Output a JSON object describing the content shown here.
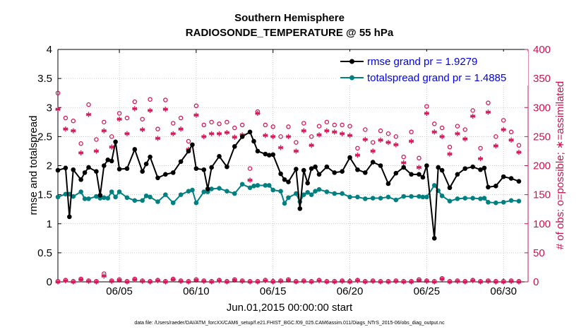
{
  "chart_data": {
    "type": "line",
    "title": "Southern Hemisphere",
    "subtitle": "RADIOSONDE_TEMPERATURE @ 55 hPa",
    "xlabel": "Jun.01,2015 00:00:00 start",
    "ylabel": "rmse and totalspread",
    "ylabel_right": "# of obs: o=possible; ∗=assimilated",
    "footnote": "data file: /Users/raeder/DAI/ATM_forcXX/CAM6_setup/f.e21.FHIST_BGC.f09_025.CAM6assim.011/Diags_NTrS_2015-06/obs_diag_output.nc",
    "xlim": [
      1.0,
      31.6
    ],
    "ylim": [
      0,
      4
    ],
    "ylim_right": [
      0,
      400
    ],
    "xticks": [
      5,
      10,
      15,
      20,
      25,
      30
    ],
    "xtick_labels": [
      "06/05",
      "06/10",
      "06/15",
      "06/20",
      "06/25",
      "06/30"
    ],
    "yticks": [
      0,
      0.5,
      1,
      1.5,
      2,
      2.5,
      3,
      3.5,
      4
    ],
    "ytick_labels": [
      "0",
      "0.5",
      "1",
      "1.5",
      "2",
      "2.5",
      "3",
      "3.5",
      "4"
    ],
    "yticks_right": [
      0,
      50,
      100,
      150,
      200,
      250,
      300,
      350,
      400
    ],
    "ytick_labels_right": [
      "0",
      "50",
      "100",
      "150",
      "200",
      "250",
      "300",
      "350",
      "400"
    ],
    "colors": {
      "rmse": "#000000",
      "spread": "#008080",
      "obs": "#d6185a",
      "legend_text": "#0000ee",
      "axis_right": "#c8144e"
    },
    "series": [
      {
        "name": "rmse grand pr = 1.9279",
        "key": "rmse",
        "x": [
          1.0,
          1.5,
          1.75,
          2.0,
          2.5,
          2.75,
          3.0,
          3.5,
          3.75,
          4.0,
          4.25,
          4.5,
          4.75,
          5.0,
          5.5,
          6.0,
          6.5,
          6.75,
          7.0,
          7.5,
          8.0,
          8.5,
          9.0,
          9.5,
          9.75,
          10.0,
          10.5,
          10.75,
          11.0,
          11.5,
          12.0,
          12.5,
          13.0,
          13.5,
          13.75,
          14.0,
          14.5,
          14.75,
          15.0,
          15.5,
          15.75,
          16.0,
          16.5,
          16.75,
          17.0,
          17.25,
          17.5,
          17.75,
          18.0,
          18.5,
          19.0,
          19.5,
          20.0,
          20.5,
          21.0,
          21.5,
          22.0,
          22.5,
          23.0,
          23.5,
          24.0,
          24.5,
          24.75,
          25.0,
          25.5,
          25.75,
          26.0,
          26.5,
          27.0,
          27.5,
          28.0,
          28.5,
          28.75,
          29.0,
          29.5,
          30.0,
          30.5,
          31.0
        ],
        "y": [
          1.92,
          1.96,
          1.12,
          1.93,
          1.76,
          1.88,
          1.97,
          1.9,
          1.49,
          2.0,
          2.1,
          2.08,
          2.41,
          1.94,
          1.95,
          2.28,
          1.9,
          2.03,
          2.15,
          1.79,
          1.85,
          1.88,
          2.07,
          2.25,
          2.36,
          1.95,
          1.93,
          1.6,
          1.97,
          2.16,
          1.98,
          2.33,
          2.5,
          2.58,
          2.42,
          2.25,
          2.2,
          2.18,
          2.19,
          1.86,
          1.76,
          1.72,
          1.94,
          1.26,
          1.92,
          1.7,
          1.95,
          1.98,
          1.85,
          1.98,
          1.88,
          1.9,
          2.14,
          1.93,
          1.88,
          2.06,
          2.0,
          1.69,
          1.87,
          1.97,
          1.85,
          1.85,
          1.8,
          2.0,
          0.75,
          1.97,
          1.92,
          1.62,
          1.85,
          1.95,
          1.98,
          1.93,
          1.96,
          1.63,
          1.65,
          1.81,
          1.78,
          1.73
        ]
      },
      {
        "name": "totalspread grand pr = 1.4885",
        "key": "spread",
        "x": [
          1.0,
          1.5,
          1.75,
          2.0,
          2.5,
          2.75,
          3.0,
          3.5,
          3.75,
          4.0,
          4.25,
          4.5,
          4.75,
          5.0,
          5.5,
          6.0,
          6.5,
          6.75,
          7.0,
          7.5,
          8.0,
          8.5,
          9.0,
          9.5,
          9.75,
          10.0,
          10.5,
          10.75,
          11.0,
          11.5,
          12.0,
          12.5,
          13.0,
          13.5,
          13.75,
          14.0,
          14.5,
          14.75,
          15.0,
          15.5,
          15.75,
          16.0,
          16.5,
          16.75,
          17.0,
          17.25,
          17.5,
          17.75,
          18.0,
          18.5,
          19.0,
          19.5,
          20.0,
          20.5,
          21.0,
          21.5,
          22.0,
          22.5,
          23.0,
          23.5,
          24.0,
          24.5,
          24.75,
          25.0,
          25.5,
          25.75,
          26.0,
          26.5,
          27.0,
          27.5,
          28.0,
          28.5,
          28.75,
          29.0,
          29.5,
          30.0,
          30.5,
          31.0
        ],
        "y": [
          1.46,
          1.51,
          1.51,
          1.47,
          1.55,
          1.43,
          1.43,
          1.47,
          1.44,
          1.45,
          1.44,
          1.55,
          1.46,
          1.55,
          1.45,
          1.4,
          1.4,
          1.48,
          1.46,
          1.38,
          1.5,
          1.36,
          1.5,
          1.56,
          1.58,
          1.36,
          1.55,
          1.55,
          1.6,
          1.61,
          1.56,
          1.52,
          1.68,
          1.62,
          1.65,
          1.66,
          1.66,
          1.66,
          1.58,
          1.56,
          1.35,
          1.45,
          1.52,
          1.38,
          1.5,
          1.54,
          1.5,
          1.56,
          1.59,
          1.55,
          1.52,
          1.52,
          1.46,
          1.46,
          1.43,
          1.44,
          1.44,
          1.46,
          1.41,
          1.47,
          1.47,
          1.47,
          1.46,
          1.46,
          1.66,
          1.57,
          1.48,
          1.39,
          1.43,
          1.44,
          1.44,
          1.43,
          1.44,
          1.37,
          1.36,
          1.37,
          1.4,
          1.39
        ]
      }
    ],
    "obs_possible": {
      "x": [
        1.0,
        1.5,
        2.0,
        2.5,
        3.0,
        3.5,
        4.0,
        4.5,
        5.0,
        5.5,
        6.0,
        6.5,
        7.0,
        7.5,
        8.0,
        8.5,
        9.0,
        9.5,
        10.0,
        10.5,
        11.0,
        11.5,
        12.0,
        12.5,
        13.0,
        13.5,
        14.0,
        14.5,
        15.0,
        15.5,
        16.0,
        16.5,
        17.0,
        17.5,
        18.0,
        18.5,
        19.0,
        19.5,
        20.0,
        20.5,
        21.0,
        21.5,
        22.0,
        22.5,
        23.0,
        23.5,
        24.0,
        24.5,
        25.0,
        25.5,
        26.0,
        26.5,
        27.0,
        27.5,
        28.0,
        28.5,
        29.0,
        29.5,
        30.0,
        30.5,
        31.0
      ],
      "y": [
        325,
        282,
        277,
        238,
        305,
        245,
        275,
        250,
        290,
        282,
        310,
        280,
        314,
        263,
        313,
        273,
        282,
        242,
        303,
        270,
        275,
        272,
        275,
        265,
        270,
        195,
        293,
        270,
        267,
        250,
        267,
        240,
        273,
        250,
        268,
        275,
        270,
        270,
        268,
        230,
        262,
        240,
        260,
        255,
        250,
        215,
        258,
        213,
        302,
        272,
        265,
        232,
        268,
        262,
        295,
        230,
        308,
        250,
        278,
        258,
        235
      ]
    },
    "obs_assimilated": {
      "x": [
        1.0,
        1.5,
        2.0,
        2.5,
        3.0,
        3.5,
        4.0,
        4.5,
        5.0,
        5.5,
        6.0,
        6.5,
        7.0,
        7.5,
        8.0,
        8.5,
        9.0,
        9.5,
        10.0,
        10.5,
        11.0,
        11.5,
        12.0,
        12.5,
        13.0,
        13.5,
        14.0,
        14.5,
        15.0,
        15.5,
        16.0,
        16.5,
        17.0,
        17.5,
        18.0,
        18.5,
        19.0,
        19.5,
        20.0,
        20.5,
        21.0,
        21.5,
        22.0,
        22.5,
        23.0,
        23.5,
        24.0,
        24.5,
        25.0,
        25.5,
        26.0,
        26.5,
        27.0,
        27.5,
        28.0,
        28.5,
        29.0,
        29.5,
        30.0,
        30.5,
        31.0
      ],
      "y": [
        297,
        263,
        260,
        222,
        288,
        225,
        260,
        232,
        280,
        255,
        298,
        262,
        295,
        247,
        297,
        255,
        263,
        228,
        287,
        250,
        255,
        255,
        257,
        249,
        253,
        175,
        290,
        252,
        250,
        231,
        250,
        225,
        260,
        235,
        253,
        260,
        258,
        255,
        252,
        218,
        245,
        225,
        244,
        240,
        236,
        205,
        242,
        197,
        290,
        258,
        250,
        220,
        255,
        246,
        285,
        212,
        292,
        234,
        262,
        244,
        223
      ]
    },
    "obs_bottom_possible": {
      "x": [
        1.0,
        1.5,
        2.0,
        2.5,
        3.0,
        3.5,
        4.0,
        4.5,
        5.0,
        5.5,
        6.0,
        6.5,
        7.0,
        7.5,
        8.0,
        8.5,
        9.0,
        9.5,
        10.0,
        10.5,
        11.0,
        11.5,
        12.0,
        12.5,
        13.0,
        13.5,
        14.0,
        14.5,
        15.0,
        15.5,
        16.0,
        16.5,
        17.0,
        17.5,
        18.0,
        18.5,
        19.0,
        19.5,
        20.0,
        20.5,
        21.0,
        21.5,
        22.0,
        22.5,
        23.0,
        23.5,
        24.0,
        24.5,
        25.0,
        25.5,
        26.0,
        26.5,
        27.0,
        27.5,
        28.0,
        28.5,
        29.0,
        29.5,
        30.0,
        30.5,
        31.0
      ],
      "y": [
        1,
        3,
        1,
        5,
        2,
        1,
        14,
        2,
        4,
        1,
        5,
        2,
        1,
        3,
        1,
        5,
        2,
        1,
        4,
        2,
        1,
        3,
        1,
        4,
        2,
        1,
        1,
        3,
        1,
        2,
        4,
        1,
        2,
        1,
        3,
        1,
        1,
        2,
        1,
        3,
        1,
        2,
        1,
        1,
        2,
        1,
        1,
        4,
        2,
        1,
        6,
        1,
        2,
        1,
        3,
        1,
        2,
        1,
        1,
        2,
        1
      ]
    },
    "obs_bottom_assimilated": {
      "x": [
        1.0,
        1.5,
        2.0,
        2.5,
        3.0,
        3.5,
        4.0,
        4.5,
        5.0,
        5.5,
        6.0,
        6.5,
        7.0,
        7.5,
        8.0,
        8.5,
        9.0,
        9.5,
        10.0,
        10.5,
        11.0,
        11.5,
        12.0,
        12.5,
        13.0,
        13.5,
        14.0,
        14.5,
        15.0,
        15.5,
        16.0,
        16.5,
        17.0,
        17.5,
        18.0,
        18.5,
        19.0,
        19.5,
        20.0,
        20.5,
        21.0,
        21.5,
        22.0,
        22.5,
        23.0,
        23.5,
        24.0,
        24.5,
        25.0,
        25.5,
        26.0,
        26.5,
        27.0,
        27.5,
        28.0,
        28.5,
        29.0,
        29.5,
        30.0,
        30.5,
        31.0
      ],
      "y": [
        0,
        2,
        0,
        4,
        1,
        0,
        10,
        1,
        3,
        0,
        4,
        1,
        0,
        2,
        0,
        4,
        1,
        0,
        3,
        1,
        0,
        2,
        0,
        3,
        1,
        0,
        0,
        2,
        0,
        1,
        3,
        0,
        1,
        0,
        2,
        0,
        0,
        1,
        0,
        2,
        0,
        1,
        0,
        0,
        1,
        0,
        0,
        3,
        1,
        0,
        5,
        0,
        1,
        0,
        2,
        0,
        1,
        0,
        0,
        1,
        0
      ]
    }
  }
}
